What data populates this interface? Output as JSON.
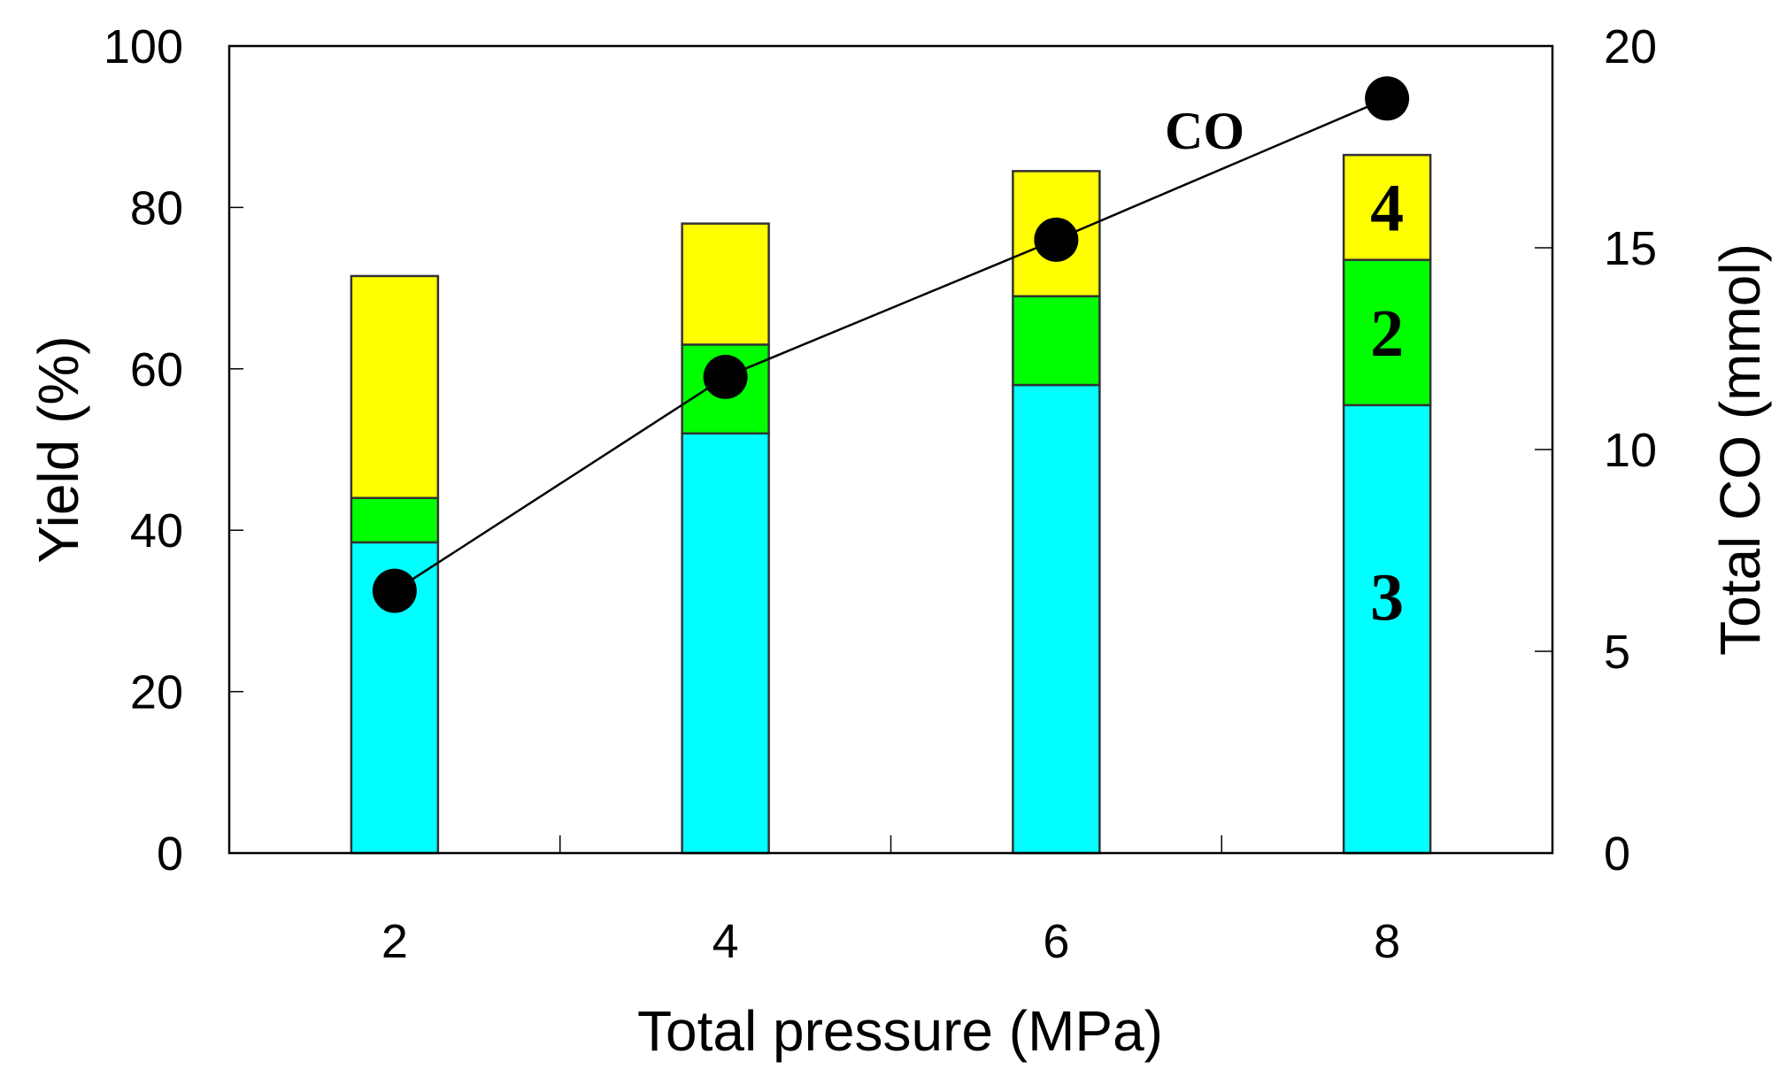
{
  "chart_data": {
    "type": "bar",
    "subtype": "stacked-bar-with-line-secondary-axis",
    "title": "",
    "xlabel": "Total pressure (MPa)",
    "ylabel": "Yield (%)",
    "y2label": "Total CO (mmol)",
    "ylim": [
      0,
      100
    ],
    "y2lim": [
      0,
      20
    ],
    "yticks": [
      "0",
      "20",
      "40",
      "60",
      "80",
      "100"
    ],
    "y2ticks": [
      "0",
      "5",
      "10",
      "15",
      "20"
    ],
    "categories": [
      "2",
      "4",
      "6",
      "8"
    ],
    "series": [
      {
        "name": "3",
        "color": "#00ffff",
        "values": [
          38.5,
          52,
          58,
          55.5
        ]
      },
      {
        "name": "2",
        "color": "#00ff00",
        "values": [
          5.5,
          11,
          11,
          18
        ]
      },
      {
        "name": "4",
        "color": "#ffff00",
        "values": [
          27.5,
          15,
          15.5,
          13
        ]
      }
    ],
    "line": {
      "name": "CO",
      "axis": "right",
      "color": "#000000",
      "values": [
        6.5,
        11.8,
        15.2,
        18.7
      ]
    },
    "series_labels": [
      "3",
      "2",
      "4",
      "CO"
    ],
    "grid": false
  }
}
